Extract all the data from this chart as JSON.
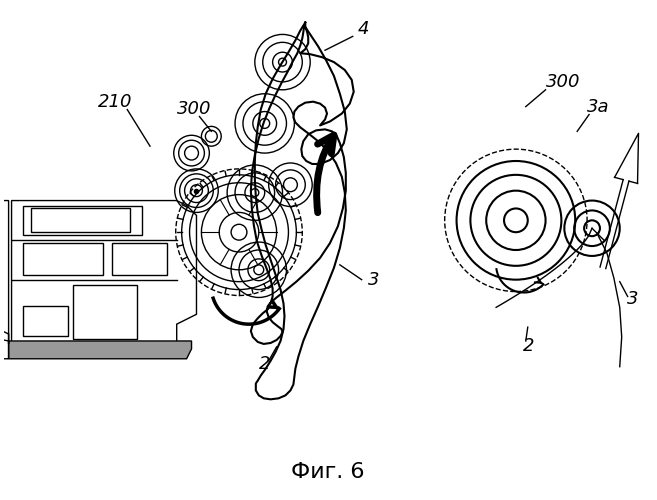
{
  "title": "Фиг. 6",
  "background_color": "#ffffff",
  "line_color": "#000000",
  "fig_width": 6.57,
  "fig_height": 5.0,
  "dpi": 100
}
